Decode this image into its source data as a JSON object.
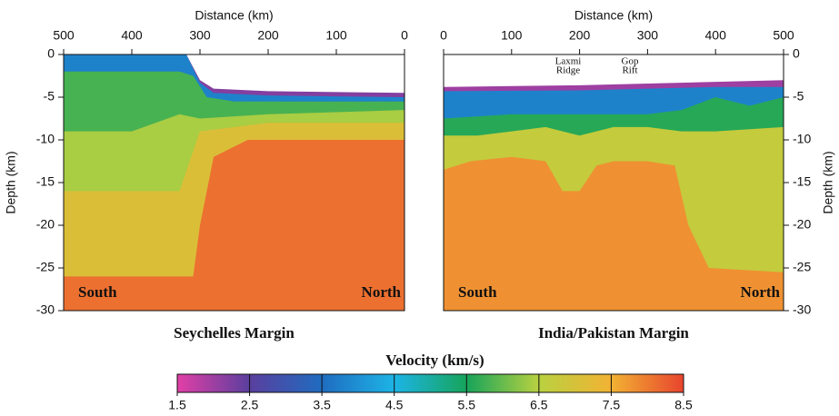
{
  "chart_data": [
    {
      "type": "section",
      "title": "Seychelles Margin",
      "xlabel": "Distance (km)",
      "ylabel": "Depth (km)",
      "xlim": [
        500,
        0
      ],
      "xticks": [
        500,
        400,
        300,
        200,
        100,
        0
      ],
      "ylim": [
        -30,
        0
      ],
      "yticks": [
        0,
        -5,
        -10,
        -15,
        -20,
        -25,
        -30
      ],
      "axis_side": "left",
      "left_label": "South",
      "right_label": "North",
      "layers": [
        {
          "velocity": 2.2,
          "x": [
            500,
            320,
            300,
            280,
            200,
            0
          ],
          "depth": [
            0,
            0,
            -3,
            -4,
            -4.3,
            -4.5
          ]
        },
        {
          "velocity": 3.8,
          "x": [
            500,
            320,
            300,
            280,
            200,
            0
          ],
          "depth": [
            0,
            0,
            -3.3,
            -4.5,
            -4.8,
            -5
          ]
        },
        {
          "velocity": 5.8,
          "x": [
            500,
            330,
            310,
            290,
            250,
            0
          ],
          "depth": [
            -2,
            -2,
            -2.5,
            -5,
            -5.5,
            -5.5
          ]
        },
        {
          "velocity": 6.4,
          "x": [
            500,
            400,
            330,
            300,
            200,
            0
          ],
          "depth": [
            -9,
            -9,
            -7,
            -7.5,
            -7,
            -6.5
          ]
        },
        {
          "velocity": 7.1,
          "x": [
            500,
            330,
            300,
            200,
            0
          ],
          "depth": [
            -16,
            -16,
            -9,
            -8,
            -8
          ]
        },
        {
          "velocity": 8.1,
          "x": [
            500,
            310,
            300,
            280,
            230,
            0
          ],
          "depth": [
            -26,
            -26,
            -20,
            -12,
            -10,
            -10
          ]
        }
      ]
    },
    {
      "type": "section",
      "title": "India/Pakistan Margin",
      "xlabel": "Distance (km)",
      "ylabel": "Depth (km)",
      "xlim": [
        0,
        500
      ],
      "xticks": [
        0,
        100,
        200,
        300,
        400,
        500
      ],
      "ylim": [
        -30,
        0
      ],
      "yticks": [
        0,
        -5,
        -10,
        -15,
        -20,
        -25,
        -30
      ],
      "axis_side": "right",
      "left_label": "South",
      "right_label": "North",
      "annotations": [
        {
          "lines": [
            "Laxmi",
            "Ridge"
          ]
        },
        {
          "lines": [
            "Gop",
            "Rift"
          ]
        }
      ],
      "layers": [
        {
          "velocity": 2.0,
          "x": [
            0,
            100,
            200,
            300,
            400,
            500
          ],
          "depth": [
            -3.8,
            -3.7,
            -3.6,
            -3.4,
            -3.2,
            -3
          ]
        },
        {
          "velocity": 3.8,
          "x": [
            0,
            200,
            400,
            500
          ],
          "depth": [
            -4.3,
            -4.2,
            -3.8,
            -3.8
          ]
        },
        {
          "velocity": 5.6,
          "x": [
            0,
            100,
            200,
            300,
            350,
            400,
            450,
            500
          ],
          "depth": [
            -7.5,
            -7,
            -7,
            -7,
            -6.5,
            -5,
            -6,
            -5
          ]
        },
        {
          "velocity": 6.7,
          "x": [
            0,
            50,
            100,
            150,
            200,
            250,
            300,
            350,
            400,
            500
          ],
          "depth": [
            -9.5,
            -9.5,
            -9,
            -8.5,
            -9.5,
            -8.5,
            -8.5,
            -9,
            -9,
            -8.5
          ]
        },
        {
          "velocity": 7.8,
          "x": [
            0,
            40,
            100,
            150,
            175,
            200,
            225,
            250,
            300,
            340,
            360,
            390,
            500
          ],
          "depth": [
            -13.5,
            -12.5,
            -12,
            -12.5,
            -16,
            -16,
            -13,
            -12.5,
            -12.5,
            -13,
            -20,
            -25,
            -25.5
          ]
        }
      ]
    },
    {
      "type": "colorbar",
      "title": "Velocity (km/s)",
      "lim": [
        1.5,
        8.5
      ],
      "ticks": [
        1.5,
        2.5,
        3.5,
        4.5,
        5.5,
        6.5,
        7.5,
        8.5
      ],
      "colors": [
        "#e23fa6",
        "#5a3f9e",
        "#1f6cc0",
        "#1db4e6",
        "#16a45a",
        "#b9d140",
        "#f2b233",
        "#e8442e"
      ]
    }
  ]
}
